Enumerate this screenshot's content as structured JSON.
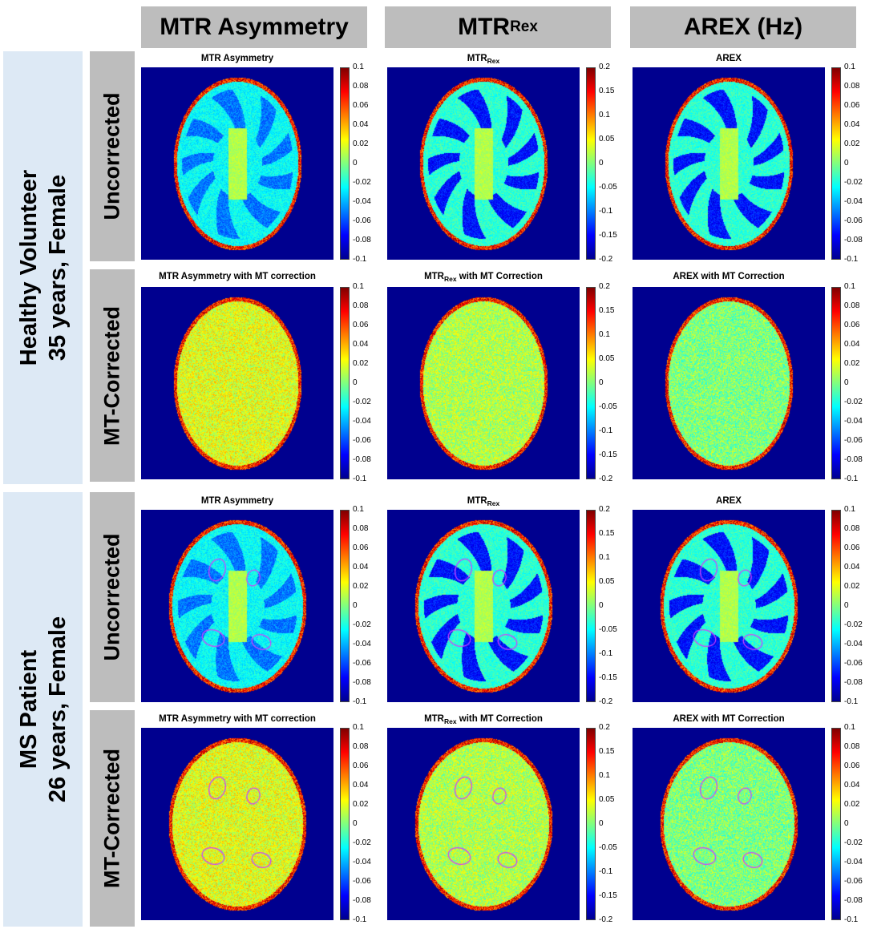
{
  "column_headers": [
    {
      "main": "MTR Asymmetry",
      "sub": ""
    },
    {
      "main": "MTR",
      "sub": "Rex"
    },
    {
      "main": "AREX (Hz)",
      "sub": ""
    }
  ],
  "groups": [
    {
      "line1": "Healthy Volunteer",
      "line2": "35 years, Female"
    },
    {
      "line1": "MS Patient",
      "line2": "26 years, Female"
    }
  ],
  "row_labels": [
    "Uncorrected",
    "MT-Corrected",
    "Uncorrected",
    "MT-Corrected"
  ],
  "panel_titles": [
    [
      {
        "main": "MTR Asymmetry",
        "sub": "",
        "rest": ""
      },
      {
        "main": "MTR",
        "sub": "Rex",
        "rest": ""
      },
      {
        "main": "AREX",
        "sub": "",
        "rest": ""
      }
    ],
    [
      {
        "main": "MTR Asymmetry with MT correction",
        "sub": "",
        "rest": ""
      },
      {
        "main": "MTR",
        "sub": "Rex",
        "rest": " with MT Correction"
      },
      {
        "main": "AREX with MT Correction",
        "sub": "",
        "rest": ""
      }
    ],
    [
      {
        "main": "MTR Asymmetry",
        "sub": "",
        "rest": ""
      },
      {
        "main": "MTR",
        "sub": "Rex",
        "rest": ""
      },
      {
        "main": "AREX",
        "sub": "",
        "rest": ""
      }
    ],
    [
      {
        "main": "MTR Asymmetry with MT correction",
        "sub": "",
        "rest": ""
      },
      {
        "main": "MTR",
        "sub": "Rex",
        "rest": " with MT Correction"
      },
      {
        "main": "AREX with MT Correction",
        "sub": "",
        "rest": ""
      }
    ]
  ],
  "colorbar_ticks": [
    [
      "0.1",
      "0.08",
      "0.06",
      "0.04",
      "0.02",
      "0",
      "-0.02",
      "-0.04",
      "-0.06",
      "-0.08",
      "-0.1"
    ],
    [
      "0.2",
      "0.15",
      "0.1",
      "0.05",
      "0",
      "-0.05",
      "-0.1",
      "-0.15",
      "-0.2"
    ],
    [
      "0.1",
      "0.08",
      "0.06",
      "0.04",
      "0.02",
      "0",
      "-0.02",
      "-0.04",
      "-0.06",
      "-0.08",
      "-0.1"
    ]
  ],
  "colors": {
    "background_map": "#00008f",
    "header_gray": "#bdbdbd",
    "group_blue": "#dde9f5",
    "lesion_outline": "#d040ff"
  }
}
